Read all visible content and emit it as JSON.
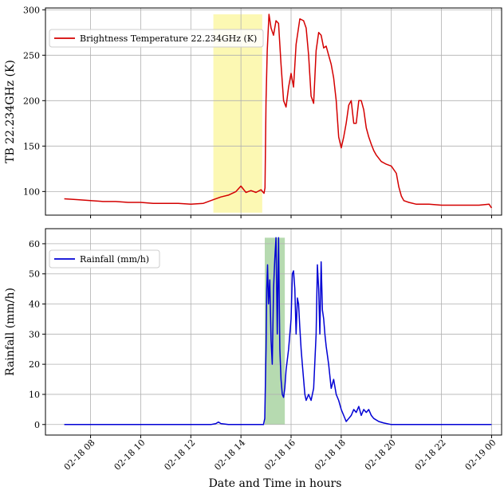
{
  "chart_data": [
    {
      "type": "line",
      "ylabel": "TB 22.234GHz (K)",
      "xlabel": "",
      "ylim": [
        74,
        302
      ],
      "yticks": [
        100,
        150,
        200,
        250,
        300
      ],
      "grid": true,
      "legend_position": "top-left",
      "highlight": {
        "x_start": 12.9,
        "x_end": 14.85,
        "color": "#fbf7a6"
      },
      "series": [
        {
          "name": "Brightness Temperature 22.234GHz (K)",
          "color": "#d40000",
          "x": [
            6.95,
            7.5,
            8.0,
            8.5,
            9.0,
            9.5,
            10.0,
            10.5,
            11.0,
            11.5,
            12.0,
            12.5,
            12.9,
            13.2,
            13.5,
            13.8,
            14.0,
            14.2,
            14.4,
            14.6,
            14.8,
            14.92,
            14.96,
            15.0,
            15.05,
            15.12,
            15.2,
            15.3,
            15.4,
            15.5,
            15.6,
            15.7,
            15.8,
            15.9,
            16.0,
            16.1,
            16.2,
            16.35,
            16.5,
            16.6,
            16.7,
            16.8,
            16.9,
            17.0,
            17.1,
            17.2,
            17.3,
            17.4,
            17.5,
            17.6,
            17.7,
            17.8,
            17.9,
            18.0,
            18.1,
            18.2,
            18.3,
            18.4,
            18.5,
            18.6,
            18.7,
            18.8,
            18.9,
            19.0,
            19.1,
            19.2,
            19.3,
            19.4,
            19.6,
            19.8,
            20.0,
            20.2,
            20.3,
            20.4,
            20.5,
            20.7,
            21.0,
            21.5,
            22.0,
            22.5,
            23.0,
            23.5,
            23.9,
            24.0
          ],
          "values": [
            92,
            91,
            90,
            89,
            89,
            88,
            88,
            87,
            87,
            87,
            86,
            87,
            91,
            94,
            96,
            100,
            106,
            99,
            101,
            99,
            102,
            98,
            104,
            200,
            255,
            295,
            280,
            272,
            288,
            285,
            240,
            200,
            193,
            215,
            230,
            215,
            262,
            290,
            288,
            280,
            250,
            205,
            197,
            255,
            275,
            272,
            258,
            260,
            250,
            240,
            225,
            200,
            160,
            148,
            160,
            175,
            195,
            200,
            175,
            175,
            200,
            200,
            190,
            170,
            160,
            152,
            145,
            140,
            133,
            130,
            128,
            120,
            105,
            95,
            90,
            88,
            86,
            86,
            85,
            85,
            85,
            85,
            86,
            82
          ]
        }
      ]
    },
    {
      "type": "line",
      "ylabel": "Rainfall (mm/h)",
      "xlabel": "Date and Time in hours",
      "ylim": [
        -3.5,
        65
      ],
      "yticks": [
        0,
        10,
        20,
        30,
        40,
        50,
        60
      ],
      "xlim": [
        6.2,
        24.4
      ],
      "xticks": [
        "02-18 08",
        "02-18 10",
        "02-18 12",
        "02-18 14",
        "02-18 16",
        "02-18 18",
        "02-18 20",
        "02-18 22",
        "02-19 00"
      ],
      "xtick_hours": [
        8,
        10,
        12,
        14,
        16,
        18,
        20,
        22,
        24
      ],
      "grid": true,
      "legend_position": "top-left",
      "highlight": {
        "x_start": 14.95,
        "x_end": 15.75,
        "color": "#a9d3a2"
      },
      "series": [
        {
          "name": "Rainfall (mm/h)",
          "color": "#0000d4",
          "x": [
            6.95,
            8.0,
            9.0,
            10.0,
            11.0,
            12.0,
            12.8,
            13.0,
            13.1,
            13.2,
            13.5,
            14.0,
            14.5,
            14.9,
            14.95,
            15.0,
            15.03,
            15.06,
            15.1,
            15.15,
            15.2,
            15.25,
            15.3,
            15.35,
            15.4,
            15.45,
            15.5,
            15.55,
            15.6,
            15.65,
            15.7,
            15.75,
            15.8,
            15.9,
            16.0,
            16.05,
            16.1,
            16.15,
            16.2,
            16.25,
            16.3,
            16.35,
            16.4,
            16.45,
            16.5,
            16.55,
            16.6,
            16.7,
            16.8,
            16.9,
            17.0,
            17.05,
            17.1,
            17.15,
            17.2,
            17.25,
            17.3,
            17.35,
            17.4,
            17.5,
            17.6,
            17.7,
            17.8,
            17.9,
            18.0,
            18.1,
            18.2,
            18.3,
            18.4,
            18.5,
            18.6,
            18.7,
            18.8,
            18.9,
            19.0,
            19.1,
            19.2,
            19.3,
            19.5,
            19.7,
            20.0,
            20.5,
            21.0,
            22.0,
            23.0,
            24.0
          ],
          "values": [
            0,
            0,
            0,
            0,
            0,
            0,
            0,
            0.3,
            0.8,
            0.3,
            0,
            0,
            0,
            0,
            2,
            25,
            45,
            53,
            40,
            48,
            28,
            20,
            45,
            55,
            62,
            30,
            62,
            25,
            15,
            10,
            9,
            12,
            18,
            25,
            35,
            50,
            51,
            45,
            30,
            42,
            40,
            32,
            25,
            20,
            15,
            10,
            8,
            10,
            8,
            12,
            30,
            53,
            45,
            30,
            54,
            38,
            35,
            30,
            26,
            20,
            12,
            15,
            10,
            8,
            5,
            3,
            1,
            2,
            3,
            5,
            4,
            6,
            3,
            5,
            4,
            5,
            3,
            2,
            1,
            0.5,
            0,
            0,
            0,
            0,
            0,
            0
          ]
        }
      ]
    }
  ]
}
